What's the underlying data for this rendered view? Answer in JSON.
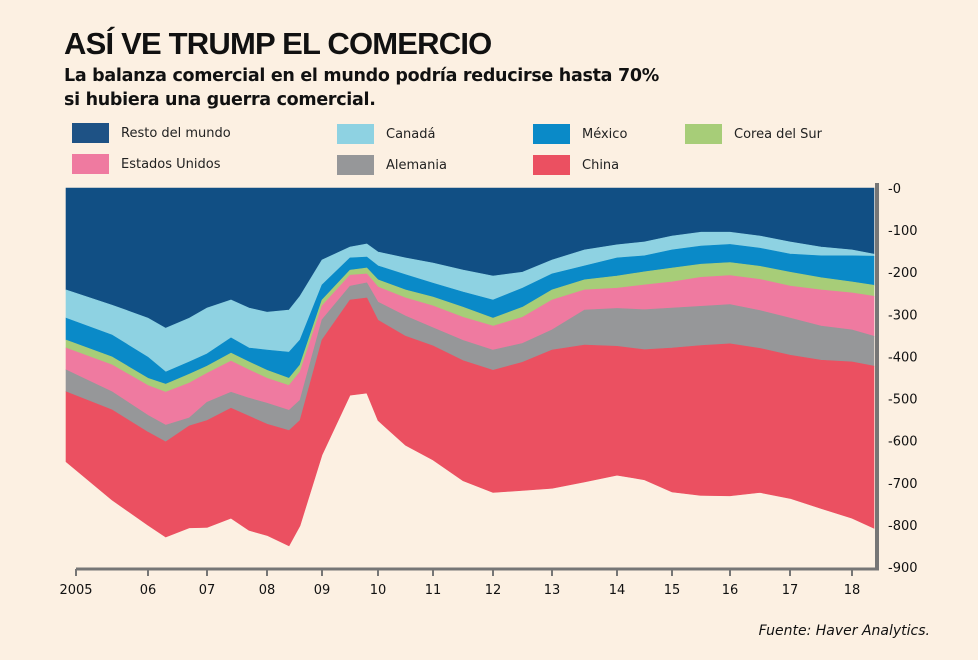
{
  "header": {
    "title": "ASÍ VE TRUMP EL COMERCIO",
    "subtitle": "La balanza comercial en el mundo podría reducirse hasta 70% si hubiera una guerra comercial."
  },
  "source": "Fuente: Haver Analytics.",
  "chart_data": {
    "type": "area",
    "stacked": true,
    "title": "ASÍ VE TRUMP EL COMERCIO",
    "subtitle": "La balanza comercial en el mundo podría reducirse hasta 70% si hubiera una guerra comercial.",
    "xlabel": "",
    "ylabel": "",
    "x_ticks": [
      "2005",
      "06",
      "07",
      "08",
      "09",
      "10",
      "11",
      "12",
      "13",
      "14",
      "15",
      "16",
      "17",
      "18"
    ],
    "x_tick_values": [
      2005,
      2006,
      2007,
      2008,
      2009,
      2010,
      2011,
      2012,
      2013,
      2014,
      2015,
      2016,
      2017,
      2018
    ],
    "y_ticks": [
      "-0",
      "-100",
      "-200",
      "-300",
      "-400",
      "-500",
      "-600",
      "-700",
      "-800",
      "-900"
    ],
    "y_tick_values": [
      0,
      -100,
      -200,
      -300,
      -400,
      -500,
      -600,
      -700,
      -800,
      -900
    ],
    "xlim": [
      2005,
      2018.4
    ],
    "ylim": [
      -900,
      0
    ],
    "y_axis_side": "right",
    "grid": false,
    "legend_position": "top",
    "x": [
      2005.0,
      2005.5,
      2006.0,
      2006.3,
      2006.7,
      2007.0,
      2007.4,
      2007.7,
      2008.0,
      2008.4,
      2008.6,
      2009.0,
      2009.5,
      2009.8,
      2010.0,
      2010.5,
      2011.0,
      2011.5,
      2012.0,
      2012.5,
      2013.0,
      2013.5,
      2014.0,
      2014.5,
      2015.0,
      2015.5,
      2016.0,
      2016.5,
      2017.0,
      2017.5,
      2018.0,
      2018.4
    ],
    "series": [
      {
        "name": "Resto del mundo",
        "color": "#114f84",
        "values": [
          -242,
          -278,
          -309,
          -333,
          -309,
          -285,
          -266,
          -285,
          -295,
          -290,
          -257,
          -171,
          -140,
          -133,
          -152,
          -166,
          -178,
          -195,
          -209,
          -200,
          -171,
          -147,
          -135,
          -128,
          -114,
          -105,
          -105,
          -114,
          -128,
          -140,
          -147,
          -157
        ]
      },
      {
        "name": "Canadá",
        "color": "#8ed2e2",
        "values": [
          -67,
          -71,
          -93,
          -104,
          -104,
          -109,
          -90,
          -95,
          -90,
          -100,
          -104,
          -59,
          -26,
          -31,
          -33,
          -40,
          -48,
          -52,
          -57,
          -38,
          -33,
          -38,
          -31,
          -33,
          -33,
          -33,
          -29,
          -29,
          -29,
          -21,
          -14,
          -5
        ]
      },
      {
        "name": "México",
        "color": "#0a8ac8",
        "values": [
          -52,
          -52,
          -50,
          -29,
          -29,
          -29,
          -36,
          -33,
          -48,
          -62,
          -59,
          -36,
          -29,
          -26,
          -33,
          -36,
          -33,
          -36,
          -43,
          -45,
          -38,
          -33,
          -43,
          -38,
          -43,
          -43,
          -43,
          -43,
          -43,
          -52,
          -62,
          -69
        ]
      },
      {
        "name": "Corea del Sur",
        "color": "#a7cd78",
        "values": [
          -19,
          -19,
          -17,
          -19,
          -21,
          -17,
          -19,
          -19,
          -19,
          -17,
          -17,
          -14,
          -12,
          -14,
          -17,
          -19,
          -21,
          -24,
          -19,
          -24,
          -24,
          -24,
          -29,
          -31,
          -33,
          -31,
          -31,
          -31,
          -33,
          -29,
          -26,
          -26
        ]
      },
      {
        "name": "Estados Unidos",
        "color": "#ef7aa0",
        "values": [
          -52,
          -64,
          -71,
          -78,
          -83,
          -69,
          -74,
          -67,
          -59,
          -59,
          -67,
          -33,
          -26,
          -21,
          -36,
          -43,
          -52,
          -55,
          -57,
          -62,
          -71,
          -48,
          -48,
          -59,
          -62,
          -69,
          -69,
          -74,
          -76,
          -86,
          -88,
          -95
        ]
      },
      {
        "name": "Alemania",
        "color": "#969799",
        "values": [
          -52,
          -43,
          -40,
          -40,
          -19,
          -43,
          -38,
          -43,
          -50,
          -48,
          -48,
          -48,
          -33,
          -36,
          -43,
          -48,
          -43,
          -48,
          -48,
          -45,
          -48,
          -83,
          -90,
          -95,
          -95,
          -93,
          -93,
          -90,
          -88,
          -81,
          -76,
          -71
        ]
      },
      {
        "name": "China",
        "color": "#eb5061",
        "values": [
          -166,
          -214,
          -221,
          -226,
          -242,
          -254,
          -261,
          -271,
          -264,
          -274,
          -250,
          -273,
          -226,
          -226,
          -238,
          -259,
          -271,
          -285,
          -290,
          -304,
          -328,
          -325,
          -306,
          -309,
          -342,
          -356,
          -361,
          -342,
          -340,
          -352,
          -371,
          -385
        ]
      }
    ]
  }
}
